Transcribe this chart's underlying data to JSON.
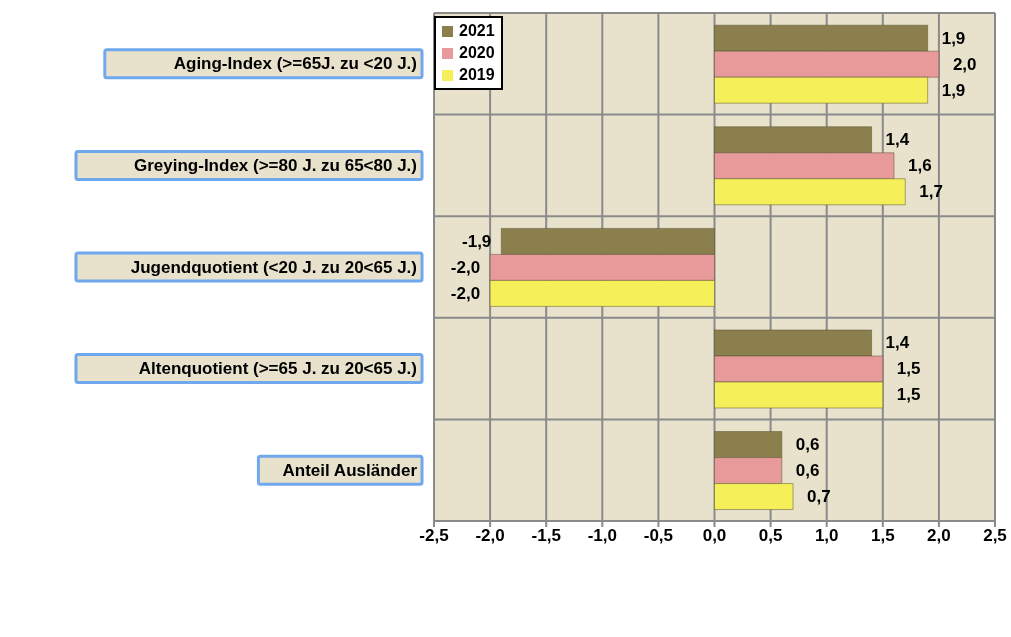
{
  "chart_data": {
    "type": "bar",
    "orientation": "horizontal",
    "categories": [
      "Aging-Index  (>=65J.  zu <20 J.)",
      "Greying-Index (>=80 J. zu 65<80 J.)",
      "Jugendquotient (<20 J. zu 20<65 J.)",
      "Altenquotient (>=65 J. zu 20<65 J.)",
      "Anteil Ausländer"
    ],
    "series": [
      {
        "name": "2021",
        "color": "#8b7f4e",
        "values": [
          1.9,
          1.4,
          -1.9,
          1.4,
          0.6
        ],
        "value_labels": [
          "1,9",
          "1,4",
          "-1,9",
          "1,4",
          "0,6"
        ]
      },
      {
        "name": "2020",
        "color": "#e89a9a",
        "values": [
          2.0,
          1.6,
          -2.0,
          1.5,
          0.6
        ],
        "value_labels": [
          "2,0",
          "1,6",
          "-2,0",
          "1,5",
          "0,6"
        ]
      },
      {
        "name": "2019",
        "color": "#f5f05a",
        "values": [
          1.9,
          1.7,
          -2.0,
          1.5,
          0.7
        ],
        "value_labels": [
          "1,9",
          "1,7",
          "-2,0",
          "1,5",
          "0,7"
        ]
      }
    ],
    "xlim": [
      -2.5,
      2.5
    ],
    "xticks": [
      {
        "value": -2.5,
        "label": "-2,5"
      },
      {
        "value": -2,
        "label": "-2,0"
      },
      {
        "value": -1.5,
        "label": "-1,5"
      },
      {
        "value": -1,
        "label": "-1,0"
      },
      {
        "value": -0.5,
        "label": "-0,5"
      },
      {
        "value": 0,
        "label": "0,0"
      },
      {
        "value": 0.5,
        "label": "0,5"
      },
      {
        "value": 1,
        "label": "1,0"
      },
      {
        "value": 1.5,
        "label": "1,5"
      },
      {
        "value": 2,
        "label": "2,0"
      },
      {
        "value": 2.5,
        "label": "2,5"
      }
    ],
    "grid": true,
    "legend": "top left"
  }
}
